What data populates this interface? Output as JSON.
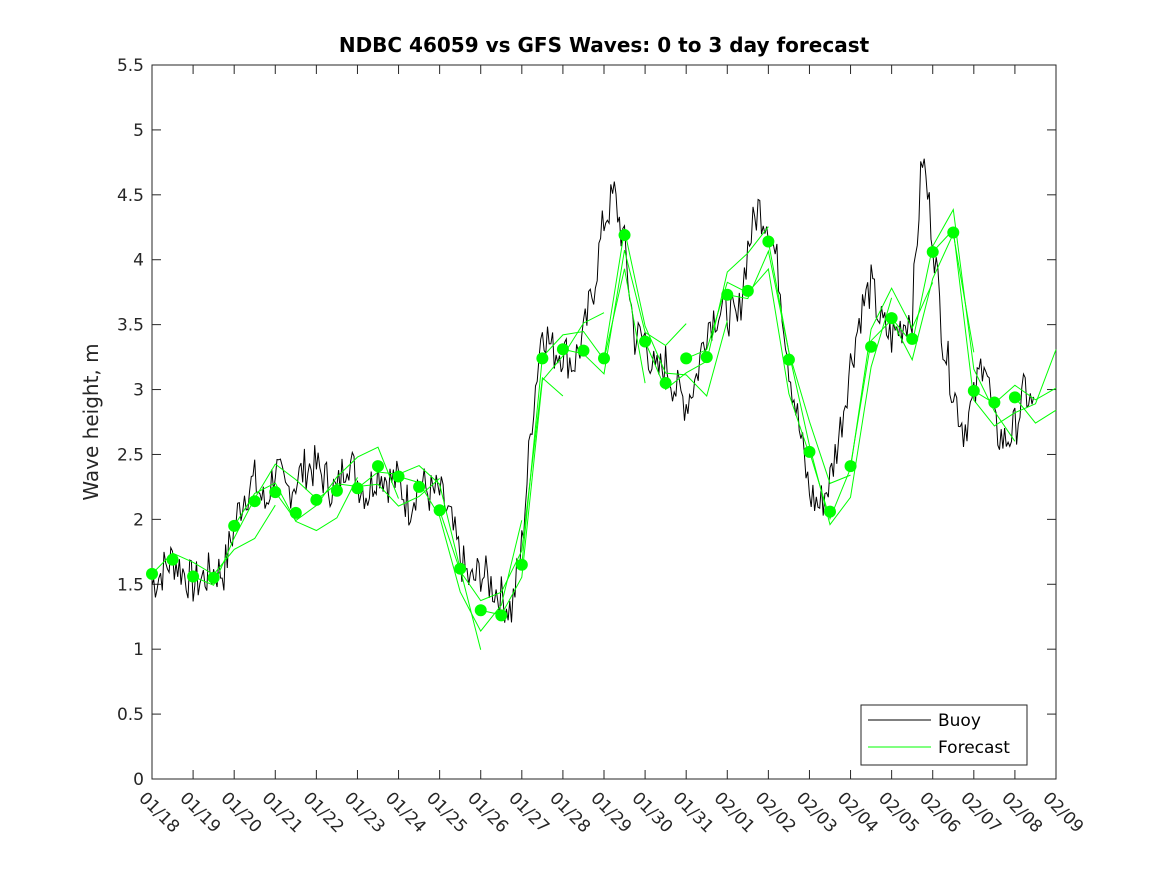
{
  "chart_data": {
    "type": "line",
    "title": "NDBC 46059 vs GFS Waves: 0 to 3 day forecast",
    "xlabel": "",
    "ylabel": "Wave height, m",
    "ylim": [
      0,
      5.5
    ],
    "yticks": [
      "0",
      "0.5",
      "1",
      "1.5",
      "2",
      "2.5",
      "3",
      "3.5",
      "4",
      "4.5",
      "5",
      "5.5"
    ],
    "xlim_days": [
      0,
      22
    ],
    "xticks": [
      "01/18",
      "01/19",
      "01/20",
      "01/21",
      "01/22",
      "01/23",
      "01/24",
      "01/25",
      "01/26",
      "01/27",
      "01/28",
      "01/29",
      "01/30",
      "01/31",
      "02/01",
      "02/02",
      "02/03",
      "02/04",
      "02/05",
      "02/06",
      "02/07",
      "02/08",
      "02/09"
    ],
    "legend": {
      "placement": "bottom-right",
      "entries": [
        "Buoy",
        "Forecast"
      ]
    },
    "colors": {
      "buoy": "#000000",
      "forecast": "#00ff00"
    },
    "series": [
      {
        "name": "Buoy",
        "x_step_days": 0.25,
        "x_start_day": 0,
        "values": [
          1.5,
          1.6,
          1.7,
          1.6,
          1.5,
          1.55,
          1.6,
          1.6,
          1.95,
          2.2,
          2.3,
          2.1,
          2.4,
          2.2,
          2.3,
          2.4,
          2.4,
          2.3,
          2.2,
          2.5,
          2.3,
          2.2,
          2.4,
          2.3,
          2.3,
          2.1,
          2.3,
          2.2,
          2.2,
          2.0,
          1.7,
          1.5,
          1.6,
          1.5,
          1.4,
          1.3,
          1.8,
          2.8,
          3.5,
          3.3,
          3.3,
          3.2,
          3.4,
          3.8,
          4.3,
          4.5,
          4.1,
          3.4,
          3.4,
          3.1,
          3.2,
          3.0,
          2.9,
          3.1,
          3.5,
          3.6,
          3.6,
          3.5,
          4.1,
          4.4,
          4.3,
          3.9,
          3.2,
          2.7,
          2.2,
          2.1,
          2.3,
          2.7,
          3.2,
          3.6,
          3.8,
          3.5,
          3.4,
          3.5,
          3.6,
          4.8,
          4.2,
          3.4,
          3.0,
          2.7,
          2.9,
          3.3,
          2.7,
          2.6,
          2.7,
          3.0,
          2.8
        ]
      },
      {
        "name": "Forecast",
        "x_step_days": 0.5,
        "x_start_day": 0,
        "values": [
          1.58,
          1.69,
          1.56,
          1.55,
          1.95,
          2.14,
          2.21,
          2.05,
          2.15,
          2.22,
          2.24,
          2.41,
          2.33,
          2.25,
          2.07,
          1.62,
          1.3,
          1.26,
          1.65,
          3.24,
          3.31,
          3.3,
          3.24,
          4.19,
          3.37,
          3.05,
          3.24,
          3.25,
          3.73,
          3.76,
          4.14,
          3.23,
          2.52,
          2.06,
          2.41,
          3.33,
          3.55,
          3.39,
          4.06,
          4.21,
          2.99,
          2.9,
          2.94,
          2.75,
          2.95
        ]
      }
    ]
  }
}
